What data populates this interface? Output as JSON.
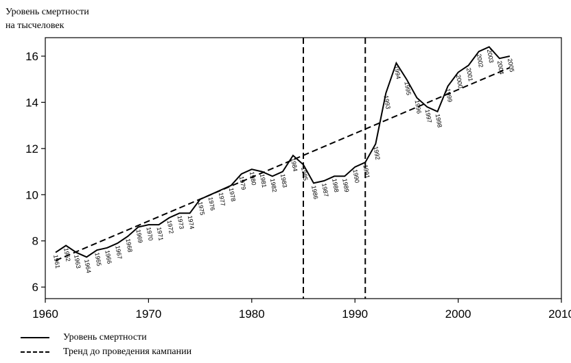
{
  "chart_data": {
    "type": "line",
    "ylabel_line1": "Уровень смертности",
    "ylabel_line2": "на тысчеловек",
    "xlabel": "",
    "xlim": [
      1960,
      2010
    ],
    "ylim": [
      5.5,
      16.8
    ],
    "xticks": [
      1960,
      1970,
      1980,
      1990,
      2000,
      2010
    ],
    "yticks": [
      6,
      8,
      10,
      12,
      14,
      16
    ],
    "grid": false,
    "legend_position": "bottom-left",
    "vlines": [
      1985,
      1991
    ],
    "series": [
      {
        "name": "Уровень смертности",
        "style": "solid",
        "x": [
          1961,
          1962,
          1963,
          1964,
          1965,
          1966,
          1967,
          1968,
          1969,
          1970,
          1971,
          1972,
          1973,
          1974,
          1975,
          1976,
          1977,
          1978,
          1979,
          1980,
          1981,
          1982,
          1983,
          1984,
          1985,
          1986,
          1987,
          1988,
          1989,
          1990,
          1991,
          1992,
          1993,
          1994,
          1995,
          1996,
          1997,
          1998,
          1999,
          2000,
          2001,
          2002,
          2003,
          2004,
          2005
        ],
        "y": [
          7.5,
          7.8,
          7.5,
          7.3,
          7.6,
          7.7,
          7.9,
          8.2,
          8.6,
          8.7,
          8.7,
          9.0,
          9.2,
          9.2,
          9.8,
          10.0,
          10.2,
          10.4,
          10.9,
          11.1,
          11.0,
          10.8,
          11.0,
          11.7,
          11.3,
          10.5,
          10.6,
          10.8,
          10.8,
          11.2,
          11.4,
          12.2,
          14.4,
          15.7,
          15.0,
          14.2,
          13.8,
          13.6,
          14.7,
          15.3,
          15.6,
          16.2,
          16.4,
          15.9,
          16.0
        ],
        "labels": [
          "1961",
          "1962",
          "1963",
          "1964",
          "1965",
          "1966",
          "1967",
          "1968",
          "1969",
          "1970",
          "1971",
          "1972",
          "1973",
          "1974",
          "1975",
          "1976",
          "1977",
          "1978",
          "1979",
          "1980",
          "1981",
          "1982",
          "1983",
          "1984",
          "1985",
          "1986",
          "1987",
          "1988",
          "1989",
          "1990",
          "1991",
          "1992",
          "1993",
          "1994",
          "1995",
          "1996",
          "1997",
          "1998",
          "1999",
          "2000",
          "2001",
          "2002",
          "2003",
          "2004",
          "2005"
        ]
      },
      {
        "name": "Тренд до проведения кампании",
        "style": "dashed",
        "x": [
          1961,
          2005
        ],
        "y": [
          7.15,
          15.5
        ]
      }
    ]
  }
}
